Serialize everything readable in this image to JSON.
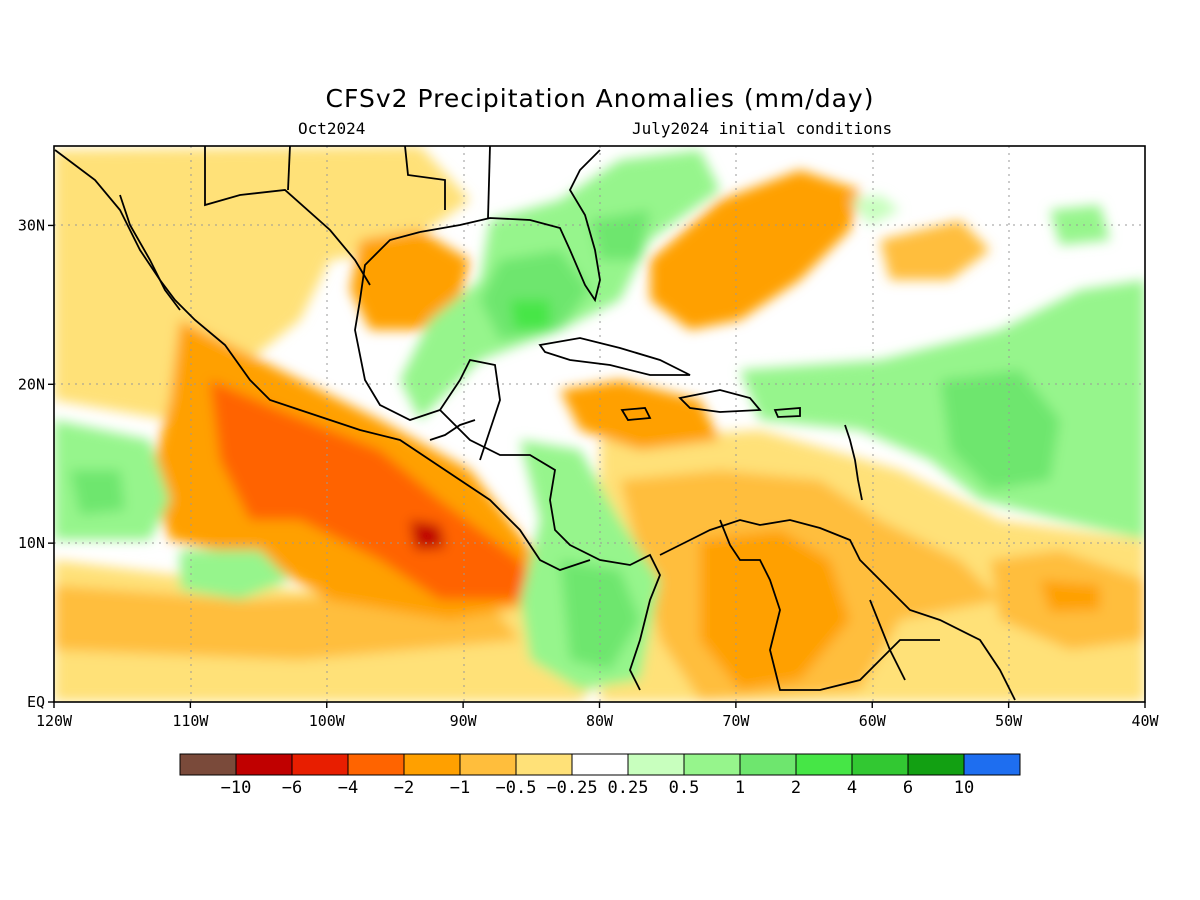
{
  "title": "CFSv2 Precipitation Anomalies (mm/day)",
  "valid_month": "Oct2024",
  "initial_conditions": "July2024 initial conditions",
  "map": {
    "region": "Caribbean / Central America / Tropical Atlantic",
    "lon_range": [
      -120,
      -40
    ],
    "lat_range": [
      0,
      35
    ],
    "coastlines_color": "#000000",
    "grid_style": "dotted gray"
  },
  "x_ticks": [
    {
      "lon": -120,
      "label": "120W"
    },
    {
      "lon": -110,
      "label": "110W"
    },
    {
      "lon": -100,
      "label": "100W"
    },
    {
      "lon": -90,
      "label": "90W"
    },
    {
      "lon": -80,
      "label": "80W"
    },
    {
      "lon": -70,
      "label": "70W"
    },
    {
      "lon": -60,
      "label": "60W"
    },
    {
      "lon": -50,
      "label": "50W"
    },
    {
      "lon": -40,
      "label": "40W"
    }
  ],
  "y_ticks": [
    {
      "lat": 0,
      "label": "EQ"
    },
    {
      "lat": 10,
      "label": "10N"
    },
    {
      "lat": 20,
      "label": "20N"
    },
    {
      "lat": 30,
      "label": "30N"
    }
  ],
  "colorbar": {
    "colors": [
      "#7a4a3a",
      "#c00000",
      "#e81e00",
      "#ff6400",
      "#ffa000",
      "#ffbe3c",
      "#ffe178",
      "#ffffff",
      "#c8ffbe",
      "#96f58c",
      "#6ee66e",
      "#46e646",
      "#32c832",
      "#12a012",
      "#1e6ef0"
    ],
    "labels": [
      "−10",
      "−6",
      "−4",
      "−2",
      "−1",
      "−0.5",
      "−0.25",
      "0.25",
      "0.5",
      "1",
      "2",
      "4",
      "6",
      "10"
    ]
  },
  "chart_data": {
    "type": "heatmap",
    "title": "CFSv2 Precipitation Anomalies (mm/day)",
    "xlabel": "",
    "ylabel": "",
    "xlim": [
      -120,
      -40
    ],
    "ylim": [
      0,
      35
    ],
    "units": "mm/day",
    "levels": [
      -10,
      -6,
      -4,
      -2,
      -1,
      -0.5,
      -0.25,
      0.25,
      0.5,
      1,
      2,
      4,
      6,
      10
    ],
    "anomaly_regions": [
      {
        "lon": -95,
        "lat": 14,
        "value": -3
      },
      {
        "lon": -92,
        "lat": 11.5,
        "value": -6
      },
      {
        "lon": -105,
        "lat": 18,
        "value": -3
      },
      {
        "lon": -115,
        "lat": 6,
        "value": -1
      },
      {
        "lon": -85,
        "lat": 23,
        "value": 1.5
      },
      {
        "lon": -78,
        "lat": 6,
        "value": 2
      },
      {
        "lon": -64,
        "lat": 9,
        "value": -1.2
      },
      {
        "lon": -62,
        "lat": 27,
        "value": -1.2
      },
      {
        "lon": -48,
        "lat": 18,
        "value": 1.5
      },
      {
        "lon": -70,
        "lat": 31,
        "value": 1.2
      },
      {
        "lon": -45,
        "lat": 6,
        "value": -1.5
      },
      {
        "lon": -117,
        "lat": 14,
        "value": 1.2
      }
    ]
  }
}
